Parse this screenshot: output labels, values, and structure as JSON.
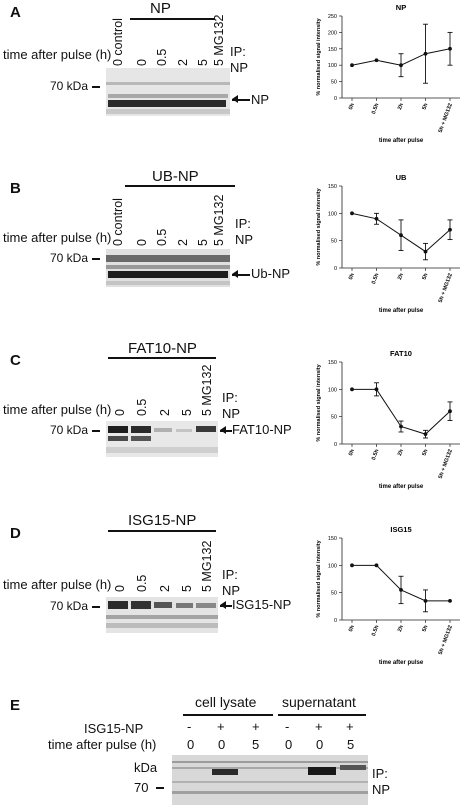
{
  "panels": [
    {
      "letter": "A",
      "construct": "NP",
      "time_label": "time after pulse (h)",
      "lanes": [
        "0 control",
        "0",
        "0.5",
        "2",
        "5",
        "5 MG132"
      ],
      "ip_label": "IP:",
      "ip_target": "NP",
      "marker": "70 kDa",
      "band_label": "NP",
      "chart_data": {
        "type": "line",
        "title": "NP",
        "xlabel": "time after pulse",
        "ylabel": "% normalised signal intensity",
        "categories": [
          "0h",
          "0.5h",
          "2h",
          "5h",
          "5h + MG132"
        ],
        "values": [
          100,
          115,
          100,
          135,
          150
        ],
        "errors": [
          0,
          0,
          35,
          90,
          50
        ],
        "ylim": [
          0,
          250
        ],
        "yticks": [
          "0",
          "50",
          "100",
          "150",
          "200",
          "250"
        ]
      }
    },
    {
      "letter": "B",
      "construct": "UB-NP",
      "time_label": "time after pulse (h)",
      "lanes": [
        "0 control",
        "0",
        "0.5",
        "2",
        "5",
        "5 MG132"
      ],
      "ip_label": "IP:",
      "ip_target": "NP",
      "marker": "70 kDa",
      "band_label": "Ub-NP",
      "chart_data": {
        "type": "line",
        "title": "UB",
        "xlabel": "time after pulse",
        "ylabel": "% normalised signal intensity",
        "categories": [
          "0h",
          "0.5h",
          "2h",
          "5h",
          "5h + MG132"
        ],
        "values": [
          100,
          90,
          60,
          30,
          70
        ],
        "errors": [
          0,
          10,
          28,
          15,
          18
        ],
        "ylim": [
          0,
          150
        ],
        "yticks": [
          "0",
          "50",
          "100",
          "150"
        ]
      }
    },
    {
      "letter": "C",
      "construct": "FAT10-NP",
      "time_label": "time after pulse (h)",
      "lanes": [
        "0",
        "0.5",
        "2",
        "5",
        "5 MG132"
      ],
      "ip_label": "IP:",
      "ip_target": "NP",
      "marker": "70 kDa",
      "band_label": "FAT10-NP",
      "chart_data": {
        "type": "line",
        "title": "FAT10",
        "xlabel": "time after pulse",
        "ylabel": "% normalised signal intensity",
        "categories": [
          "0h",
          "0.5h",
          "2h",
          "5h",
          "5h + MG132"
        ],
        "values": [
          100,
          100,
          32,
          18,
          60
        ],
        "errors": [
          0,
          12,
          10,
          7,
          17
        ],
        "ylim": [
          0,
          150
        ],
        "yticks": [
          "0",
          "50",
          "100",
          "150"
        ]
      }
    },
    {
      "letter": "D",
      "construct": "ISG15-NP",
      "time_label": "time after pulse (h)",
      "lanes": [
        "0",
        "0.5",
        "2",
        "5",
        "5 MG132"
      ],
      "ip_label": "IP:",
      "ip_target": "NP",
      "marker": "70 kDa",
      "band_label": "ISG15-NP",
      "chart_data": {
        "type": "line",
        "title": "ISG15",
        "xlabel": "time after pulse",
        "ylabel": "% normalised signal intensity",
        "categories": [
          "0h",
          "0.5h",
          "2h",
          "5h",
          "5h + MG132"
        ],
        "values": [
          100,
          100,
          55,
          35,
          35
        ],
        "errors": [
          0,
          0,
          25,
          20,
          0
        ],
        "ylim": [
          0,
          150
        ],
        "yticks": [
          "0",
          "50",
          "100",
          "150"
        ]
      }
    }
  ],
  "panel_e": {
    "letter": "E",
    "group1": "cell lysate",
    "group2": "supernatant",
    "row1_label": "ISG15-NP",
    "row1_values": [
      "-",
      "+",
      "+",
      "-",
      "+",
      "+"
    ],
    "row2_label": "time after pulse (h)",
    "row2_values": [
      "0",
      "0",
      "5",
      "0",
      "0",
      "5"
    ],
    "kda_label": "kDa",
    "marker": "70",
    "ip_label": "IP:",
    "ip_target": "NP"
  }
}
